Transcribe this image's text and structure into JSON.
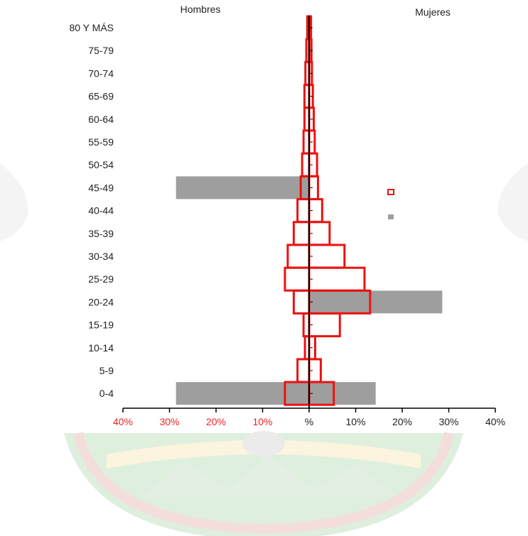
{
  "chart_data": {
    "type": "bar",
    "subtype": "population-pyramid",
    "headers": {
      "left": "Hombres",
      "right": "Mujeres"
    },
    "categories": [
      "80 Y MÁS",
      "75-79",
      "70-74",
      "65-69",
      "60-64",
      "55-59",
      "50-54",
      "45-49",
      "40-44",
      "35-39",
      "30-34",
      "25-29",
      "20-24",
      "15-19",
      "10-14",
      "5-9",
      "0-4"
    ],
    "x_ticks": [
      {
        "label": "40%",
        "value": -40,
        "color": "#ee2222"
      },
      {
        "label": "30%",
        "value": -30,
        "color": "#ee2222"
      },
      {
        "label": "20%",
        "value": -20,
        "color": "#ee2222"
      },
      {
        "label": "10%",
        "value": -10,
        "color": "#ee2222"
      },
      {
        "label": "%",
        "value": 0,
        "color": "#222222"
      },
      {
        "label": "10%",
        "value": 10,
        "color": "#222222"
      },
      {
        "label": "20%",
        "value": 20,
        "color": "#222222"
      },
      {
        "label": "30%",
        "value": 30,
        "color": "#222222"
      },
      {
        "label": "40%",
        "value": 40,
        "color": "#222222"
      }
    ],
    "xlim": [
      -40,
      40
    ],
    "series": [
      {
        "style": "filled",
        "color": "#9e9e9e",
        "male": [
          0,
          0,
          0,
          0,
          0,
          0,
          0,
          28.6,
          0,
          0,
          0,
          0,
          0,
          0,
          0,
          0,
          28.6
        ],
        "female": [
          0,
          0,
          0,
          0,
          0,
          0,
          0,
          0,
          0,
          0,
          0,
          0,
          28.6,
          0,
          0,
          0,
          14.3
        ]
      },
      {
        "style": "outline",
        "color": "#ee1111",
        "male": [
          0.4,
          0.6,
          0.8,
          1.0,
          1.0,
          1.2,
          1.5,
          1.8,
          2.5,
          3.3,
          4.6,
          5.2,
          3.3,
          1.2,
          0.9,
          2.5,
          5.2
        ],
        "female": [
          0.4,
          0.5,
          0.6,
          0.8,
          1.0,
          1.2,
          1.7,
          1.9,
          2.8,
          4.4,
          7.6,
          11.9,
          13.1,
          6.6,
          1.3,
          2.5,
          5.3
        ]
      }
    ],
    "legend": {
      "placement": "right",
      "keys": [
        {
          "color": "#ee1111",
          "style": "outline"
        },
        {
          "color": "#9e9e9e",
          "style": "filled"
        }
      ]
    }
  }
}
